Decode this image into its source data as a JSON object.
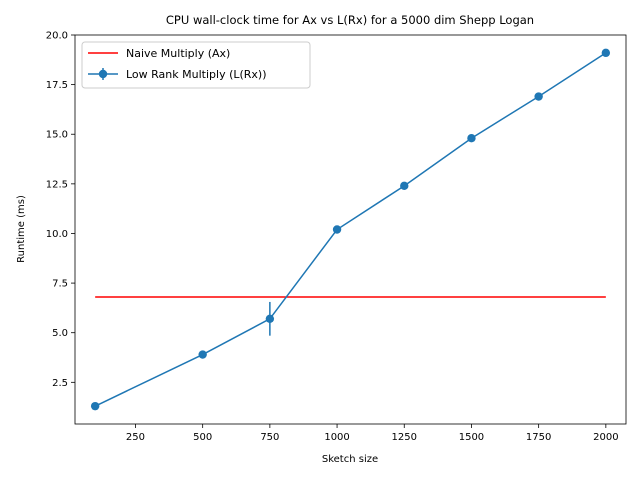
{
  "chart_data": {
    "type": "line",
    "title": "CPU wall-clock time for Ax vs L(Rx) for a 5000 dim Shepp Logan",
    "xlabel": "Sketch size",
    "ylabel": "Runtime (ms)",
    "xlim": [
      25,
      2075
    ],
    "ylim": [
      0.4,
      20.0
    ],
    "xticks": [
      250,
      500,
      750,
      1000,
      1250,
      1500,
      1750,
      2000
    ],
    "yticks": [
      2.5,
      5.0,
      7.5,
      10.0,
      12.5,
      15.0,
      17.5,
      20.0
    ],
    "xtick_labels": [
      "250",
      "500",
      "750",
      "1000",
      "1250",
      "1500",
      "1750",
      "2000"
    ],
    "ytick_labels": [
      "2.5",
      "5.0",
      "7.5",
      "10.0",
      "12.5",
      "15.0",
      "17.5",
      "20.0"
    ],
    "legend_position": "top-left",
    "series": [
      {
        "name": "Naive Multiply (Ax)",
        "color": "#ff0000",
        "style": "line",
        "x": [
          100,
          2000
        ],
        "y": [
          6.8,
          6.8
        ]
      },
      {
        "name": "Low Rank Multiply (L(Rx))",
        "color": "#1f77b4",
        "style": "line-marker-errorbar",
        "x": [
          100,
          500,
          750,
          1000,
          1250,
          1500,
          1750,
          2000
        ],
        "y": [
          1.3,
          3.9,
          5.7,
          10.2,
          12.4,
          14.8,
          16.9,
          19.1
        ],
        "yerr": [
          0.05,
          0.08,
          0.85,
          0.05,
          0.05,
          0.05,
          0.05,
          0.05
        ]
      }
    ]
  }
}
